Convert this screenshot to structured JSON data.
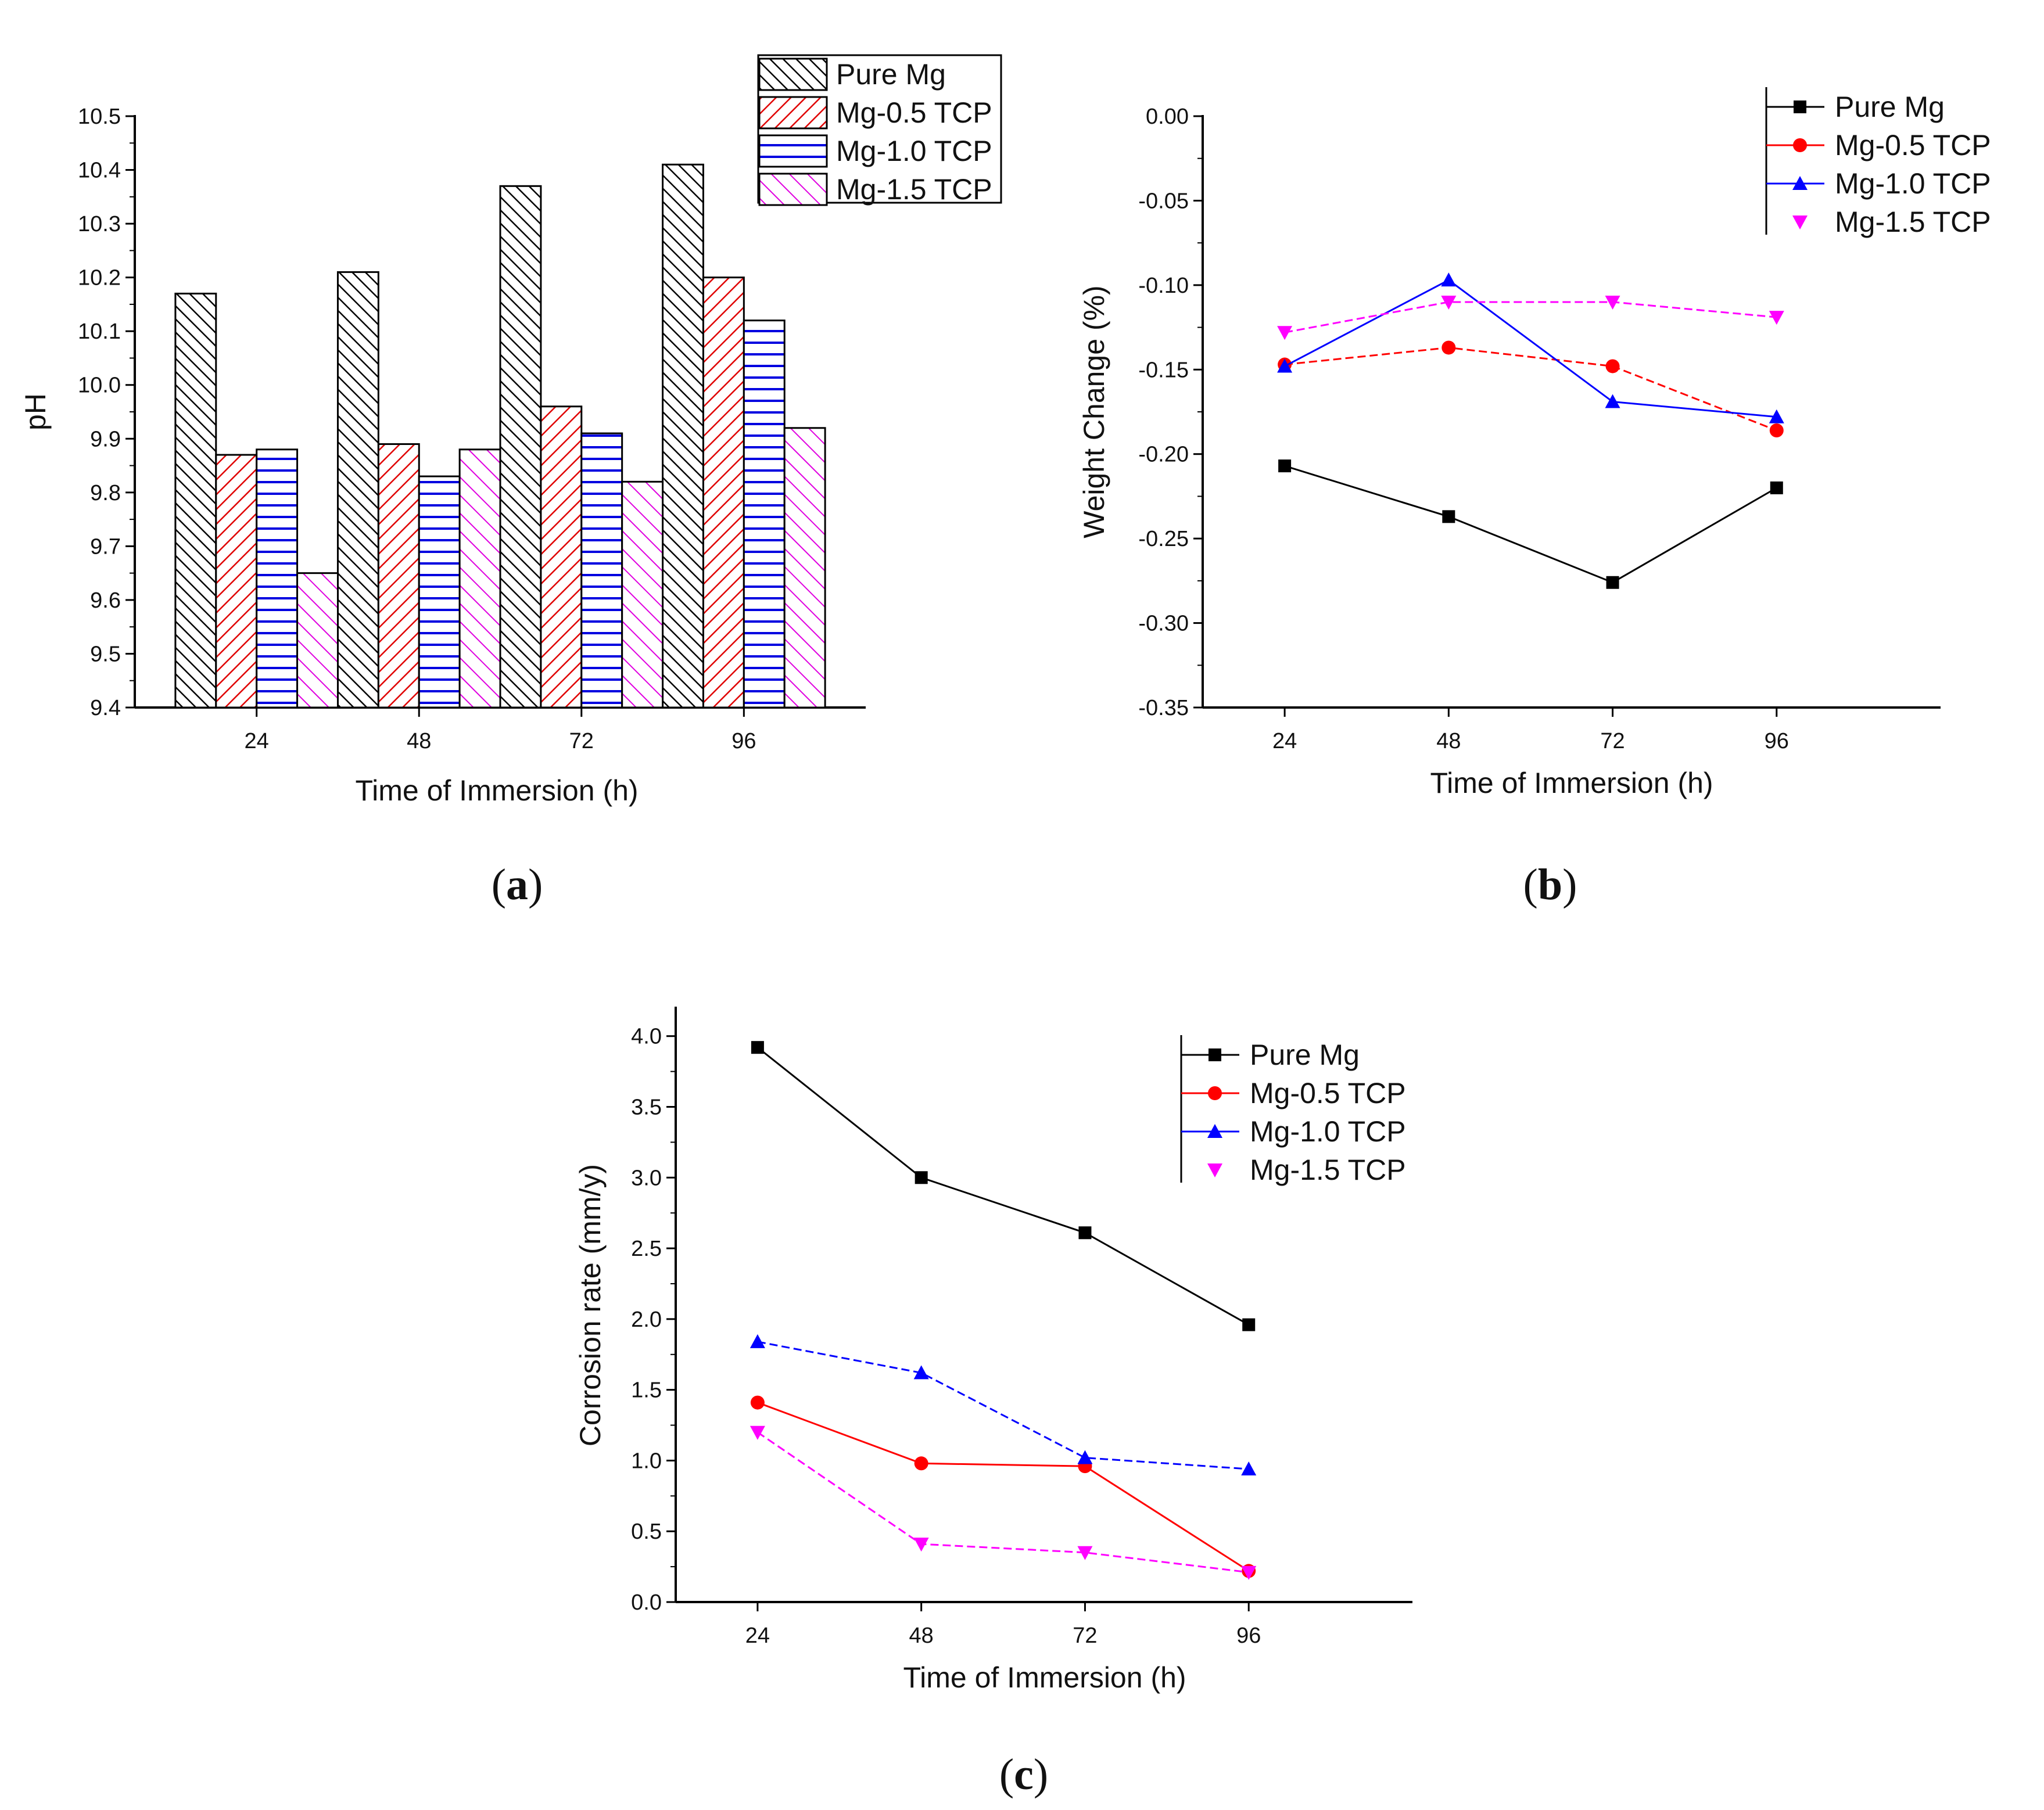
{
  "chart_data": [
    {
      "id": "a",
      "panel_label": "a",
      "type": "bar",
      "categories": [
        "24",
        "48",
        "72",
        "96"
      ],
      "series": [
        {
          "name": "Pure Mg",
          "values": [
            10.17,
            10.21,
            10.37,
            10.41
          ],
          "color": "#000000",
          "pattern": "diag-dense"
        },
        {
          "name": "Mg-0.5 TCP",
          "values": [
            9.87,
            9.89,
            9.96,
            10.2
          ],
          "color": "#e00000",
          "pattern": "diag-back"
        },
        {
          "name": "Mg-1.0 TCP",
          "values": [
            9.88,
            9.83,
            9.91,
            10.12
          ],
          "color": "#0000e0",
          "pattern": "horizontal"
        },
        {
          "name": "Mg-1.5 TCP",
          "values": [
            9.65,
            9.88,
            9.82,
            9.92
          ],
          "color": "#e000e0",
          "pattern": "diag-fwd"
        }
      ],
      "xlabel": "Time of Immersion (h)",
      "ylabel": "pH",
      "ylim": [
        9.4,
        10.5
      ],
      "yticks": [
        "9.4",
        "9.5",
        "9.6",
        "9.7",
        "9.8",
        "9.9",
        "10.0",
        "10.1",
        "10.2",
        "10.3",
        "10.4",
        "10.5"
      ],
      "legend_position": "top-right"
    },
    {
      "id": "b",
      "panel_label": "b",
      "type": "line",
      "x": [
        "24",
        "48",
        "72",
        "96"
      ],
      "series": [
        {
          "name": "Pure Mg",
          "values": [
            -0.207,
            -0.237,
            -0.276,
            -0.22
          ],
          "color": "#000000",
          "marker": "square",
          "dash": "solid"
        },
        {
          "name": "Mg-0.5 TCP",
          "values": [
            -0.147,
            -0.137,
            -0.148,
            -0.186
          ],
          "color": "#ff0000",
          "marker": "circle",
          "dash": "dashed"
        },
        {
          "name": "Mg-1.0 TCP",
          "values": [
            -0.148,
            -0.097,
            -0.169,
            -0.178
          ],
          "color": "#0000ff",
          "marker": "triangle-up",
          "dash": "solid"
        },
        {
          "name": "Mg-1.5 TCP",
          "values": [
            -0.128,
            -0.11,
            -0.11,
            -0.119
          ],
          "color": "#ff00ff",
          "marker": "triangle-down",
          "dash": "dashed"
        }
      ],
      "xlabel": "Time of Immersion (h)",
      "ylabel": "Weight Change (%)",
      "ylim": [
        -0.35,
        0.0
      ],
      "yticks": [
        "-0.35",
        "-0.30",
        "-0.25",
        "-0.20",
        "-0.15",
        "-0.10",
        "-0.05",
        "0.00"
      ],
      "legend_position": "top-right"
    },
    {
      "id": "c",
      "panel_label": "c",
      "type": "line",
      "x": [
        "24",
        "48",
        "72",
        "96"
      ],
      "series": [
        {
          "name": "Pure Mg",
          "values": [
            3.92,
            3.0,
            2.61,
            1.96
          ],
          "color": "#000000",
          "marker": "square",
          "dash": "solid"
        },
        {
          "name": "Mg-0.5 TCP",
          "values": [
            1.41,
            0.98,
            0.96,
            0.22
          ],
          "color": "#ff0000",
          "marker": "circle",
          "dash": "solid"
        },
        {
          "name": "Mg-1.0 TCP",
          "values": [
            1.84,
            1.62,
            1.02,
            0.94
          ],
          "color": "#0000ff",
          "marker": "triangle-up",
          "dash": "dashed"
        },
        {
          "name": "Mg-1.5 TCP",
          "values": [
            1.2,
            0.41,
            0.35,
            0.21
          ],
          "color": "#ff00ff",
          "marker": "triangle-down",
          "dash": "dashed"
        }
      ],
      "xlabel": "Time of Immersion (h)",
      "ylabel": "Corrosion rate (mm/y)",
      "ylim": [
        0.0,
        4.2
      ],
      "yticks": [
        "0.0",
        "0.5",
        "1.0",
        "1.5",
        "2.0",
        "2.5",
        "3.0",
        "3.5",
        "4.0"
      ],
      "legend_position": "top-right"
    }
  ]
}
